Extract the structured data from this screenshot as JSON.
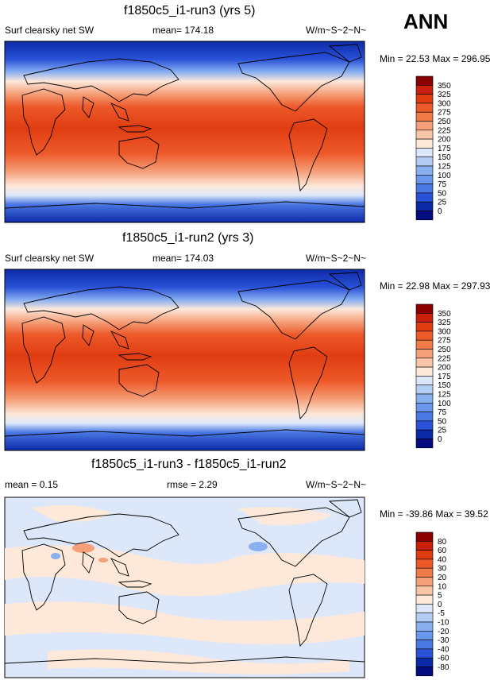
{
  "season": "ANN",
  "units": "W/m~S~2~N~",
  "colorbar_levels_abs": [
    "350",
    "325",
    "300",
    "275",
    "250",
    "225",
    "200",
    "175",
    "150",
    "125",
    "100",
    "75",
    "50",
    "25",
    "0"
  ],
  "colorbar_levels_diff": [
    "80",
    "60",
    "40",
    "30",
    "20",
    "10",
    "5",
    "0",
    "-5",
    "-10",
    "-20",
    "-30",
    "-40",
    "-60",
    "-80"
  ],
  "colors": {
    "abs_scale": [
      "#8b0000",
      "#c8200a",
      "#e03c12",
      "#ed5a2a",
      "#f07a48",
      "#f5a07a",
      "#f9c5a8",
      "#fde8da",
      "#dce8fa",
      "#b3cdf5",
      "#8ab0f0",
      "#6a96ec",
      "#4a78e4",
      "#2a52d8",
      "#0c2aa8",
      "#040c80"
    ],
    "diff_scale": [
      "#8b0000",
      "#c8200a",
      "#e03c12",
      "#ed5a2a",
      "#f07a48",
      "#f5a07a",
      "#f9c5a8",
      "#fde8da",
      "#dce8fa",
      "#b3cdf5",
      "#8ab0f0",
      "#6a96ec",
      "#4a78e4",
      "#2a52d8",
      "#0c2aa8",
      "#040c80"
    ]
  },
  "panels": [
    {
      "title": "f1850c5_i1-run3 (yrs 5)",
      "left_label": "Surf clearsky net SW",
      "center_label": "mean= 174.18",
      "units": "W/m~S~2~N~",
      "minmax": "Min =  22.53 Max = 296.95"
    },
    {
      "title": "f1850c5_i1-run2 (yrs 3)",
      "left_label": "Surf clearsky net SW",
      "center_label": "mean= 174.03",
      "units": "W/m~S~2~N~",
      "minmax": "Min =  22.98 Max = 297.93"
    },
    {
      "title": "f1850c5_i1-run3 - f1850c5_i1-run2",
      "left_label": "mean =   0.15",
      "center_label": "rmse =   2.29",
      "units": "W/m~S~2~N~",
      "minmax": "Min = -39.86 Max =  39.52"
    }
  ]
}
